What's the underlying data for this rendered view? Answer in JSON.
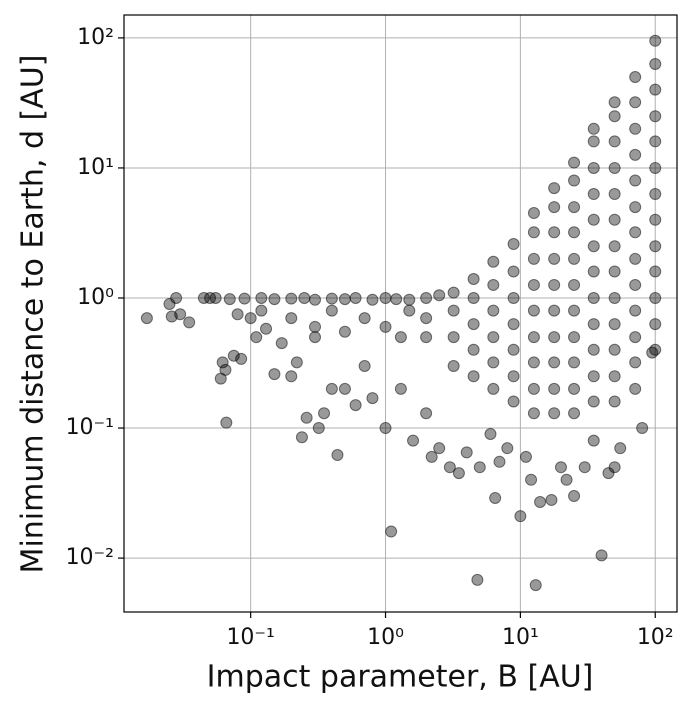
{
  "chart_data": {
    "type": "scatter",
    "x_label": "Impact parameter, B [AU]",
    "y_label": "Minimum distance to Earth, d [AU]",
    "xscale": "log",
    "yscale": "log",
    "grid": true,
    "color": "#000000",
    "xlim": [
      0.0115,
      145
    ],
    "ylim": [
      0.00385,
      150
    ],
    "xticks": [
      {
        "value": 0.1,
        "label": "10⁻¹"
      },
      {
        "value": 1,
        "label": "10⁰"
      },
      {
        "value": 10,
        "label": "10¹"
      },
      {
        "value": 100,
        "label": "10²"
      }
    ],
    "yticks": [
      {
        "value": 0.01,
        "label": "10⁻²"
      },
      {
        "value": 0.1,
        "label": "10⁻¹"
      },
      {
        "value": 1,
        "label": "10⁰"
      },
      {
        "value": 10,
        "label": "10¹"
      },
      {
        "value": 100,
        "label": "10²"
      }
    ],
    "x": [
      0.017,
      0.025,
      0.026,
      0.028,
      0.03,
      0.035,
      0.045,
      0.055,
      0.06,
      0.062,
      0.065,
      0.066,
      0.075,
      0.085,
      0.1,
      0.11,
      0.13,
      0.15,
      0.17,
      0.2,
      0.22,
      0.24,
      0.26,
      0.3,
      0.32,
      0.35,
      0.4,
      0.44,
      0.5,
      0.6,
      0.7,
      0.8,
      1.0,
      1.1,
      1.3,
      1.6,
      2,
      2.2,
      2.5,
      3,
      3.5,
      4,
      4.8,
      5,
      6,
      6.5,
      7,
      8,
      10,
      11,
      12,
      13,
      14,
      17,
      20,
      22,
      25,
      30,
      35,
      40,
      45,
      50,
      55,
      80,
      95,
      0.05,
      0.07,
      0.09,
      0.12,
      0.15,
      0.2,
      0.25,
      0.3,
      0.4,
      0.5,
      0.6,
      0.8,
      1,
      1.2,
      1.5,
      2,
      2.5,
      0.08,
      0.12,
      0.2,
      0.3,
      0.4,
      0.5,
      0.7,
      1,
      1.3,
      1.5,
      2,
      2,
      3.2,
      3.2,
      3.2,
      3.2,
      4.5,
      4.5,
      4.5,
      4.5,
      4.5,
      6.3,
      6.3,
      6.3,
      6.3,
      6.3,
      6.3,
      8.9,
      8.9,
      8.9,
      8.9,
      8.9,
      8.9,
      8.9,
      12.6,
      12.6,
      12.6,
      12.6,
      12.6,
      12.6,
      12.6,
      12.6,
      12.6,
      17.8,
      17.8,
      17.8,
      17.8,
      17.8,
      17.8,
      17.8,
      17.8,
      17.8,
      17.8,
      25,
      25,
      25,
      25,
      25,
      25,
      25,
      25,
      25,
      25,
      25,
      35,
      35,
      35,
      35,
      35,
      35,
      35,
      35,
      35,
      35,
      35,
      35,
      50,
      50,
      50,
      50,
      50,
      50,
      50,
      50,
      50,
      50,
      50,
      50,
      50,
      71,
      71,
      71,
      71,
      71,
      71,
      71,
      71,
      71,
      71,
      71,
      71,
      71,
      100,
      100,
      100,
      100,
      100,
      100,
      100,
      100,
      100,
      100,
      100,
      100,
      100
    ],
    "values": [
      0.7,
      0.9,
      0.72,
      1.0,
      0.75,
      0.65,
      1.0,
      1.0,
      0.24,
      0.32,
      0.28,
      0.11,
      0.36,
      0.34,
      0.7,
      0.5,
      0.58,
      0.26,
      0.45,
      0.25,
      0.32,
      0.085,
      0.12,
      0.5,
      0.1,
      0.13,
      0.2,
      0.062,
      0.2,
      0.15,
      0.3,
      0.17,
      0.1,
      0.016,
      0.2,
      0.08,
      0.13,
      0.06,
      0.07,
      0.05,
      0.045,
      0.065,
      0.0068,
      0.05,
      0.09,
      0.029,
      0.055,
      0.07,
      0.021,
      0.06,
      0.04,
      0.0062,
      0.027,
      0.028,
      0.05,
      0.04,
      0.03,
      0.05,
      0.08,
      0.0105,
      0.045,
      0.05,
      0.07,
      0.1,
      0.38,
      1,
      0.98,
      0.99,
      1,
      0.98,
      0.99,
      1,
      0.97,
      0.99,
      0.98,
      1,
      0.97,
      1,
      0.98,
      0.97,
      1,
      1.05,
      0.75,
      0.8,
      0.7,
      0.6,
      0.8,
      0.55,
      0.7,
      0.6,
      0.5,
      0.8,
      0.5,
      0.7,
      0.3,
      0.5,
      0.8,
      1.1,
      0.25,
      0.4,
      0.63,
      1,
      1.4,
      0.2,
      0.32,
      0.5,
      0.8,
      1.26,
      1.9,
      0.16,
      0.25,
      0.4,
      0.63,
      1,
      1.6,
      2.6,
      0.13,
      0.2,
      0.32,
      0.5,
      0.8,
      1.26,
      2,
      3.2,
      4.5,
      0.13,
      0.2,
      0.32,
      0.5,
      0.8,
      1.26,
      2,
      3.2,
      5,
      7,
      0.13,
      0.2,
      0.32,
      0.5,
      0.8,
      1.26,
      2,
      3.2,
      5,
      8,
      11,
      0.16,
      0.25,
      0.4,
      0.63,
      1,
      1.6,
      2.5,
      4,
      6.3,
      10,
      16,
      20,
      0.16,
      0.25,
      0.4,
      0.63,
      1,
      1.6,
      2.5,
      4,
      6.3,
      10,
      16,
      25,
      32,
      0.2,
      0.32,
      0.5,
      0.8,
      1.26,
      2,
      3.2,
      5,
      8,
      12.6,
      20,
      32,
      50,
      0.4,
      0.63,
      1,
      1.6,
      2.5,
      4,
      6.3,
      10,
      16,
      25,
      40,
      63,
      95
    ]
  }
}
